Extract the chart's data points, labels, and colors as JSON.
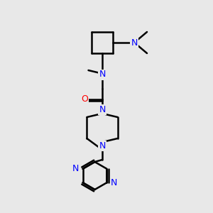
{
  "background_color": "#e8e8e8",
  "bond_color": "#000000",
  "N_color": "#0000ff",
  "O_color": "#ff0000",
  "bond_width": 1.8,
  "figsize": [
    3.0,
    3.0
  ],
  "dpi": 100,
  "xlim": [
    0,
    10
  ],
  "ylim": [
    0,
    10
  ]
}
